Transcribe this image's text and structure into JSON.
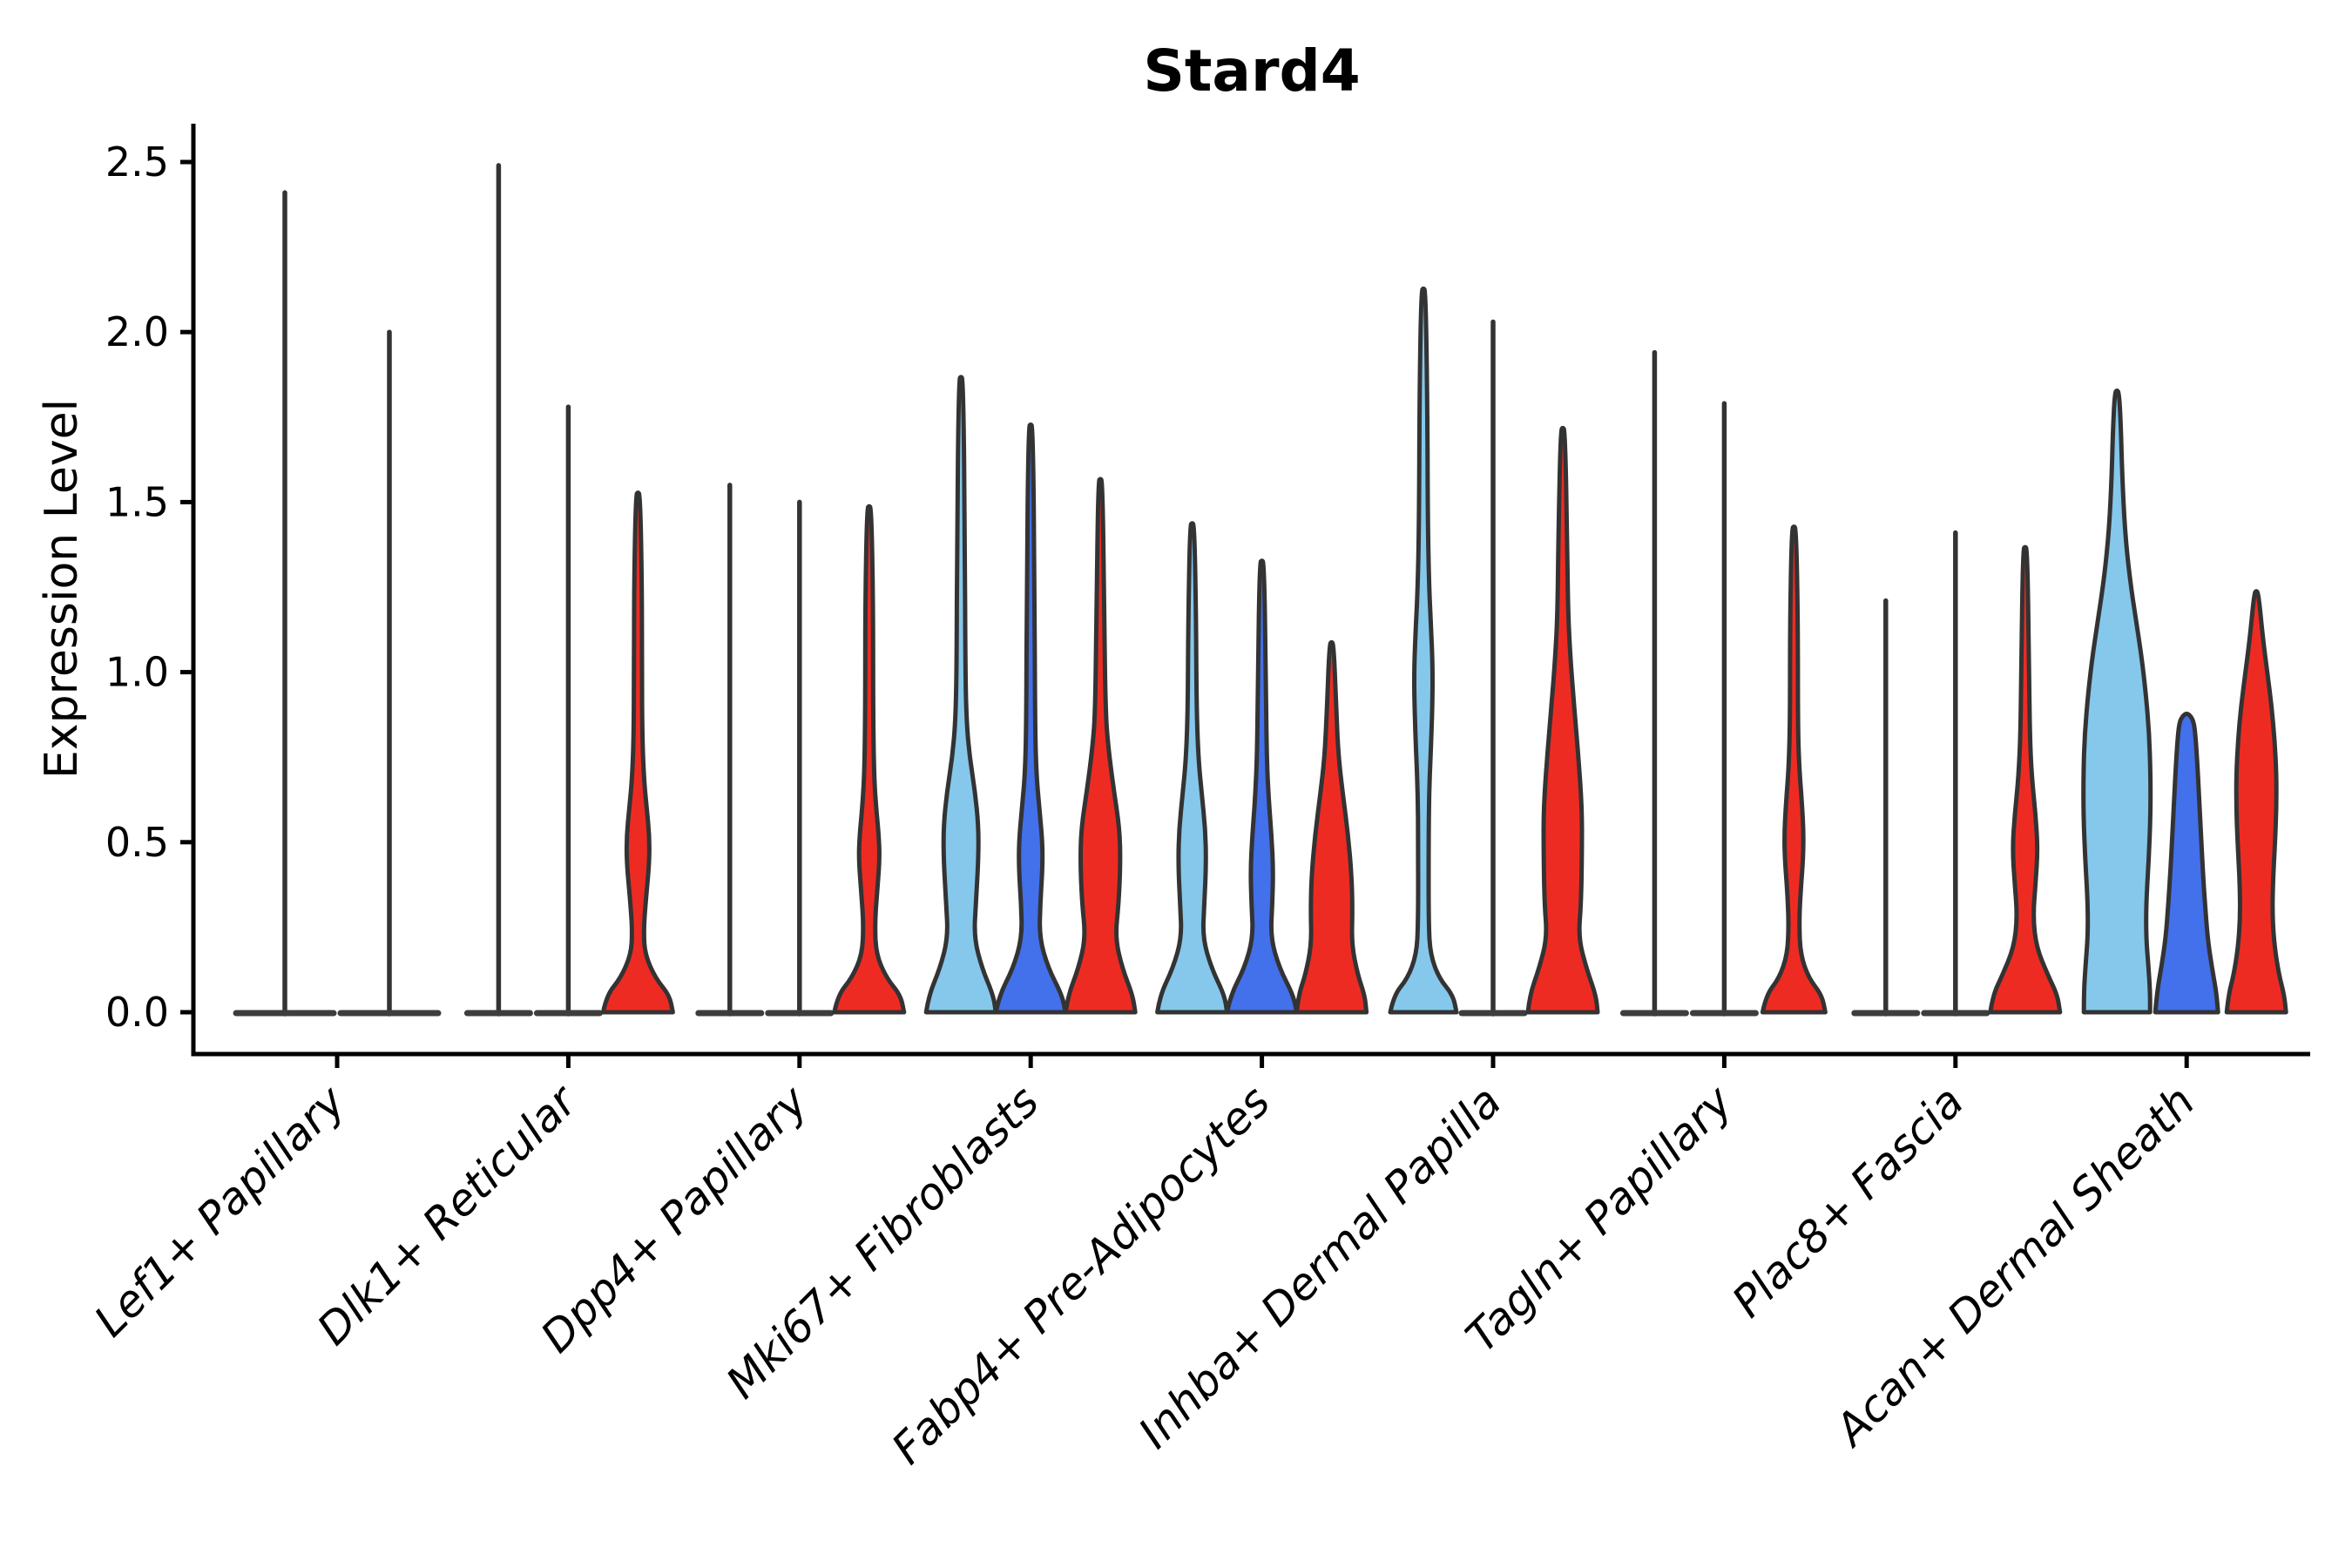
{
  "chart_data": {
    "type": "violin",
    "title": "Stard4",
    "ylabel": "Expression Level",
    "xlabel": "",
    "grid": false,
    "legend": null,
    "ylim": [
      -0.12,
      2.62
    ],
    "x_tick_rotation": 45,
    "y_ticks": [
      {
        "label": "0.0",
        "value": 0.0
      },
      {
        "label": "0.5",
        "value": 0.5
      },
      {
        "label": "1.0",
        "value": 1.0
      },
      {
        "label": "1.5",
        "value": 1.5
      },
      {
        "label": "2.0",
        "value": 2.0
      },
      {
        "label": "2.5",
        "value": 2.5
      }
    ],
    "splits": [
      {
        "name": "split-lightblue",
        "color": "#85C8EB"
      },
      {
        "name": "split-darkblue",
        "color": "#4370EB"
      },
      {
        "name": "split-red",
        "color": "#EE2B23"
      }
    ],
    "outline_color": "#333333",
    "baseline_color": "#3d3d3d",
    "groups": [
      {
        "label": "Lef1+ Papillary",
        "violins": [
          {
            "split": 0,
            "shape": "line",
            "max": 2.41,
            "base_halfwidth": 60
          },
          {
            "split": 1,
            "shape": "line",
            "max": 2.0,
            "base_halfwidth": 60
          }
        ]
      },
      {
        "label": "Dlk1+ Reticular",
        "violins": [
          {
            "split": 0,
            "shape": "line",
            "max": 2.49,
            "base_halfwidth": 40
          },
          {
            "split": 1,
            "shape": "line",
            "max": 1.78,
            "base_halfwidth": 40
          },
          {
            "split": 2,
            "shape": "violin",
            "max": 1.52,
            "profile": [
              [
                0,
                40
              ],
              [
                0.05,
                36
              ],
              [
                0.1,
                20
              ],
              [
                0.17,
                8
              ],
              [
                0.24,
                6.5
              ],
              [
                0.33,
                9
              ],
              [
                0.44,
                13
              ],
              [
                0.52,
                13
              ],
              [
                0.6,
                10
              ],
              [
                0.68,
                7
              ],
              [
                0.8,
                5
              ],
              [
                1.0,
                4.5
              ],
              [
                1.25,
                4.5
              ],
              [
                1.52,
                2.5
              ]
            ]
          }
        ]
      },
      {
        "label": "Dpp4+ Papillary",
        "violins": [
          {
            "split": 0,
            "shape": "line",
            "max": 1.55,
            "base_halfwidth": 40
          },
          {
            "split": 1,
            "shape": "line",
            "max": 1.5,
            "base_halfwidth": 40
          },
          {
            "split": 2,
            "shape": "violin",
            "max": 1.48,
            "profile": [
              [
                0,
                40
              ],
              [
                0.05,
                36
              ],
              [
                0.1,
                20
              ],
              [
                0.17,
                8
              ],
              [
                0.26,
                6.5
              ],
              [
                0.35,
                9
              ],
              [
                0.45,
                12
              ],
              [
                0.52,
                11
              ],
              [
                0.6,
                8
              ],
              [
                0.7,
                5.5
              ],
              [
                0.9,
                4.5
              ],
              [
                1.2,
                4.5
              ],
              [
                1.48,
                2.5
              ]
            ]
          }
        ]
      },
      {
        "label": "Mki67+ Fibroblasts",
        "violins": [
          {
            "split": 0,
            "shape": "violin",
            "max": 1.86,
            "profile": [
              [
                0,
                40
              ],
              [
                0.05,
                37
              ],
              [
                0.13,
                24
              ],
              [
                0.22,
                15
              ],
              [
                0.32,
                17
              ],
              [
                0.45,
                20
              ],
              [
                0.55,
                20
              ],
              [
                0.65,
                16
              ],
              [
                0.75,
                10
              ],
              [
                0.85,
                6.5
              ],
              [
                1.0,
                5
              ],
              [
                1.4,
                4.5
              ],
              [
                1.86,
                2.5
              ]
            ]
          },
          {
            "split": 1,
            "shape": "violin",
            "max": 1.72,
            "profile": [
              [
                0,
                40
              ],
              [
                0.05,
                36
              ],
              [
                0.13,
                20
              ],
              [
                0.22,
                10
              ],
              [
                0.32,
                11
              ],
              [
                0.42,
                13.5
              ],
              [
                0.5,
                13.5
              ],
              [
                0.6,
                10
              ],
              [
                0.7,
                6.5
              ],
              [
                0.85,
                5
              ],
              [
                1.25,
                4.5
              ],
              [
                1.72,
                2.5
              ]
            ]
          },
          {
            "split": 2,
            "shape": "violin",
            "max": 1.56,
            "profile": [
              [
                0,
                40
              ],
              [
                0.05,
                37
              ],
              [
                0.13,
                25
              ],
              [
                0.22,
                17
              ],
              [
                0.32,
                21
              ],
              [
                0.44,
                23
              ],
              [
                0.54,
                22
              ],
              [
                0.66,
                15
              ],
              [
                0.78,
                9
              ],
              [
                0.88,
                6
              ],
              [
                1.15,
                4.5
              ],
              [
                1.56,
                2.5
              ]
            ]
          }
        ]
      },
      {
        "label": "Fabp4+ Pre-Adipocytes",
        "violins": [
          {
            "split": 0,
            "shape": "violin",
            "max": 1.43,
            "profile": [
              [
                0,
                40
              ],
              [
                0.05,
                37
              ],
              [
                0.13,
                22
              ],
              [
                0.22,
                12
              ],
              [
                0.32,
                14
              ],
              [
                0.44,
                16
              ],
              [
                0.54,
                15
              ],
              [
                0.64,
                11
              ],
              [
                0.75,
                7
              ],
              [
                0.9,
                5
              ],
              [
                1.15,
                4.5
              ],
              [
                1.43,
                2.5
              ]
            ]
          },
          {
            "split": 1,
            "shape": "violin",
            "max": 1.32,
            "profile": [
              [
                0,
                40
              ],
              [
                0.05,
                36
              ],
              [
                0.13,
                20
              ],
              [
                0.22,
                10
              ],
              [
                0.32,
                12
              ],
              [
                0.42,
                13
              ],
              [
                0.52,
                11
              ],
              [
                0.62,
                8
              ],
              [
                0.75,
                5.5
              ],
              [
                1.0,
                4.5
              ],
              [
                1.32,
                2.5
              ]
            ]
          },
          {
            "split": 2,
            "shape": "violin",
            "max": 1.08,
            "profile": [
              [
                0,
                40
              ],
              [
                0.05,
                38
              ],
              [
                0.11,
                30
              ],
              [
                0.2,
                23
              ],
              [
                0.3,
                24
              ],
              [
                0.4,
                23
              ],
              [
                0.52,
                19
              ],
              [
                0.64,
                13
              ],
              [
                0.75,
                8
              ],
              [
                0.88,
                5.5
              ],
              [
                1.08,
                2.5
              ]
            ]
          }
        ]
      },
      {
        "label": "Inhba+ Dermal Papilla",
        "violins": [
          {
            "split": 0,
            "shape": "violin",
            "max": 2.12,
            "profile": [
              [
                0,
                38
              ],
              [
                0.05,
                34
              ],
              [
                0.1,
                18
              ],
              [
                0.17,
                8
              ],
              [
                0.26,
                6
              ],
              [
                0.5,
                6
              ],
              [
                0.65,
                6.5
              ],
              [
                0.8,
                9
              ],
              [
                0.93,
                10.5
              ],
              [
                1.02,
                10.5
              ],
              [
                1.12,
                9
              ],
              [
                1.25,
                6.5
              ],
              [
                1.45,
                5
              ],
              [
                1.8,
                4.5
              ],
              [
                2.12,
                2.5
              ]
            ]
          },
          {
            "split": 1,
            "shape": "line",
            "max": 2.03,
            "base_halfwidth": 40
          },
          {
            "split": 2,
            "shape": "violin",
            "max": 1.71,
            "profile": [
              [
                0,
                40
              ],
              [
                0.05,
                38
              ],
              [
                0.13,
                27
              ],
              [
                0.22,
                18
              ],
              [
                0.32,
                21
              ],
              [
                0.47,
                22
              ],
              [
                0.6,
                22
              ],
              [
                0.75,
                18
              ],
              [
                0.9,
                13
              ],
              [
                1.05,
                8.5
              ],
              [
                1.18,
                6
              ],
              [
                1.4,
                5
              ],
              [
                1.71,
                2.5
              ]
            ]
          }
        ]
      },
      {
        "label": "Tagln+ Papillary",
        "violins": [
          {
            "split": 0,
            "shape": "line",
            "max": 1.94,
            "base_halfwidth": 40
          },
          {
            "split": 1,
            "shape": "line",
            "max": 1.79,
            "base_halfwidth": 40
          },
          {
            "split": 2,
            "shape": "violin",
            "max": 1.42,
            "profile": [
              [
                0,
                36
              ],
              [
                0.05,
                32
              ],
              [
                0.1,
                17
              ],
              [
                0.17,
                7.5
              ],
              [
                0.26,
                6
              ],
              [
                0.35,
                7.5
              ],
              [
                0.45,
                10.5
              ],
              [
                0.53,
                11
              ],
              [
                0.62,
                9
              ],
              [
                0.72,
                6
              ],
              [
                0.85,
                4.5
              ],
              [
                1.15,
                4.5
              ],
              [
                1.42,
                2.5
              ]
            ]
          }
        ]
      },
      {
        "label": "Plac8+ Fascia",
        "violins": [
          {
            "split": 0,
            "shape": "line",
            "max": 1.21,
            "base_halfwidth": 40
          },
          {
            "split": 1,
            "shape": "line",
            "max": 1.41,
            "base_halfwidth": 40
          },
          {
            "split": 2,
            "shape": "violin",
            "max": 1.36,
            "profile": [
              [
                0,
                40
              ],
              [
                0.05,
                37
              ],
              [
                0.11,
                26
              ],
              [
                0.19,
                13
              ],
              [
                0.28,
                9
              ],
              [
                0.38,
                12
              ],
              [
                0.48,
                14.5
              ],
              [
                0.58,
                12
              ],
              [
                0.68,
                8
              ],
              [
                0.8,
                5.5
              ],
              [
                1.0,
                4.5
              ],
              [
                1.36,
                2.5
              ]
            ]
          }
        ]
      },
      {
        "label": "Acan+ Dermal Sheath",
        "violins": [
          {
            "split": 0,
            "shape": "violin",
            "max": 1.82,
            "profile": [
              [
                0,
                38
              ],
              [
                0.06,
                38
              ],
              [
                0.14,
                36
              ],
              [
                0.22,
                33.5
              ],
              [
                0.32,
                33.5
              ],
              [
                0.45,
                36.5
              ],
              [
                0.58,
                38.5
              ],
              [
                0.7,
                38.5
              ],
              [
                0.82,
                37
              ],
              [
                0.94,
                33
              ],
              [
                1.05,
                28
              ],
              [
                1.15,
                22
              ],
              [
                1.28,
                14.5
              ],
              [
                1.42,
                9
              ],
              [
                1.58,
                6
              ],
              [
                1.72,
                4.5
              ],
              [
                1.82,
                2.5
              ]
            ]
          },
          {
            "split": 1,
            "shape": "violin",
            "max": 0.87,
            "profile": [
              [
                0,
                36
              ],
              [
                0.06,
                34
              ],
              [
                0.14,
                28.5
              ],
              [
                0.22,
                24
              ],
              [
                0.32,
                21
              ],
              [
                0.42,
                18.5
              ],
              [
                0.52,
                16.5
              ],
              [
                0.62,
                14.5
              ],
              [
                0.72,
                12.5
              ],
              [
                0.8,
                10.5
              ],
              [
                0.85,
                8.5
              ],
              [
                0.87,
                5
              ]
            ]
          },
          {
            "split": 2,
            "shape": "violin",
            "max": 1.23,
            "profile": [
              [
                0,
                34
              ],
              [
                0.05,
                32
              ],
              [
                0.11,
                26
              ],
              [
                0.19,
                21
              ],
              [
                0.28,
                18.5
              ],
              [
                0.38,
                19
              ],
              [
                0.5,
                21.5
              ],
              [
                0.6,
                23
              ],
              [
                0.7,
                23
              ],
              [
                0.8,
                21
              ],
              [
                0.9,
                17.5
              ],
              [
                1.0,
                12.5
              ],
              [
                1.1,
                7.5
              ],
              [
                1.23,
                2.5
              ]
            ]
          }
        ]
      }
    ]
  }
}
